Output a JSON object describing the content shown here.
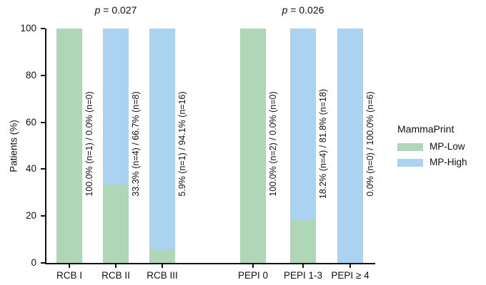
{
  "chart_data": {
    "type": "bar",
    "stacked": true,
    "categories": [
      "RCB I",
      "RCB II",
      "RCB III",
      "PEPI 0",
      "PEPI 1-3",
      "PEPI ≥ 4"
    ],
    "series": [
      {
        "name": "MP-Low",
        "color": "#afd6b6",
        "values": [
          100.0,
          33.3,
          5.9,
          100.0,
          18.2,
          0.0
        ]
      },
      {
        "name": "MP-High",
        "color": "#abd2f1",
        "values": [
          0.0,
          66.7,
          94.1,
          0.0,
          81.8,
          100.0
        ]
      }
    ],
    "bar_labels": [
      "100.0% (n=1) / 0.0% (n=0)",
      "33.3% (n=4) / 66.7% (n=8)",
      "5.9% (n=1) / 94.1% (n=16)",
      "100.0% (n=2) / 0.0% (n=0)",
      "18.2% (n=4) / 81.8% (n=18)",
      "0.0% (n=0) / 100.0% (n=6)"
    ],
    "annotations": [
      {
        "text": "p = 0.027",
        "over_category": "RCB II"
      },
      {
        "text": "p = 0.026",
        "over_category": "PEPI 1-3"
      }
    ],
    "title": "",
    "xlabel": "",
    "ylabel": "Patients (%)",
    "ylim": [
      0,
      100
    ],
    "y_ticks": [
      0,
      20,
      40,
      60,
      80,
      100
    ],
    "grid": false,
    "legend_title": "MammaPrint",
    "legend_position": "right",
    "axis_color": "#111111",
    "text_color": "#111111"
  }
}
